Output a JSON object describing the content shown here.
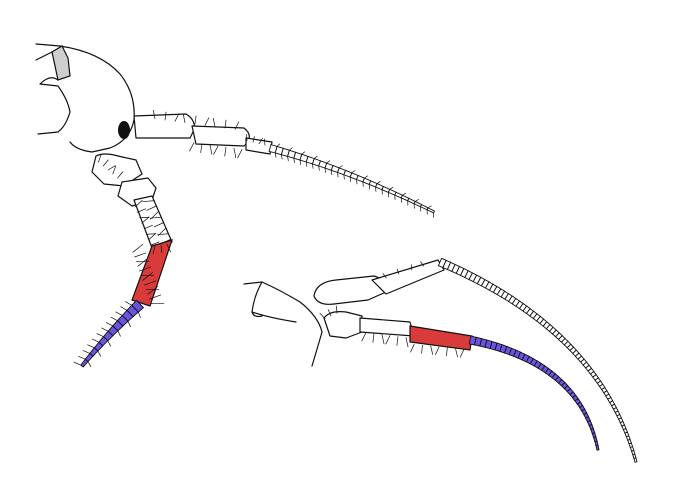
{
  "figure": {
    "background": "#ffffff",
    "line_color": "#111111",
    "highlight_colors": {
      "peduncle_segment": "#d93a3a",
      "flagellum_tip": "#6a55e0"
    }
  },
  "drawings": [
    {
      "id": "head-view",
      "parts": [
        "head",
        "eye",
        "rostrum-area",
        "antenna-1",
        "antenna-2"
      ]
    },
    {
      "id": "lateral-view",
      "parts": [
        "head-partial",
        "antenna-1",
        "antenna-2"
      ]
    }
  ]
}
